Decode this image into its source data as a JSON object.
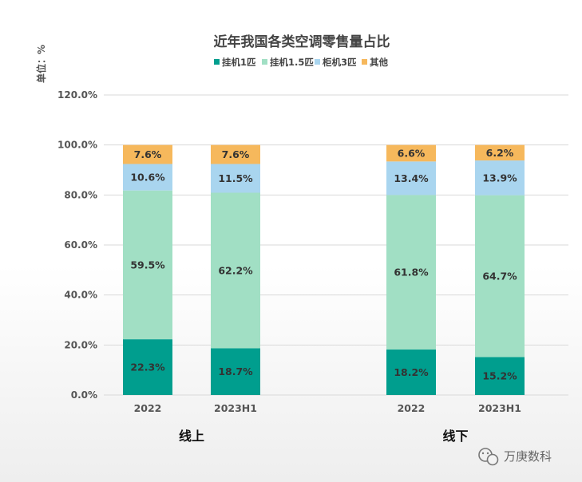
{
  "chart_data": {
    "type": "bar",
    "stacked": true,
    "title": "近年我国各类空调零售量占比",
    "ylabel": "单位：%",
    "ylim": [
      0,
      120
    ],
    "yticks": [
      "0.0%",
      "20.0%",
      "40.0%",
      "60.0%",
      "80.0%",
      "100.0%",
      "120.0%"
    ],
    "categories": [
      "2022",
      "2023H1",
      "2022",
      "2023H1"
    ],
    "groups": [
      {
        "label": "线上",
        "categories": [
          0,
          1
        ]
      },
      {
        "label": "线下",
        "categories": [
          2,
          3
        ]
      }
    ],
    "series": [
      {
        "name": "挂机1匹",
        "color": "#009e8e",
        "values": [
          22.3,
          18.7,
          18.2,
          15.2
        ],
        "labels": [
          "22.3%",
          "18.7%",
          "18.2%",
          "15.2%"
        ]
      },
      {
        "name": "挂机1.5匹",
        "color": "#a1dfc4",
        "values": [
          59.5,
          62.2,
          61.8,
          64.7
        ],
        "labels": [
          "59.5%",
          "62.2%",
          "61.8%",
          "64.7%"
        ]
      },
      {
        "name": "柜机3匹",
        "color": "#a9d5ef",
        "values": [
          10.6,
          11.5,
          13.4,
          13.9
        ],
        "labels": [
          "10.6%",
          "11.5%",
          "13.4%",
          "13.9%"
        ]
      },
      {
        "name": "其他",
        "color": "#f6b85c",
        "values": [
          7.6,
          7.6,
          6.6,
          6.2
        ],
        "labels": [
          "7.6%",
          "7.6%",
          "6.6%",
          "6.2%"
        ]
      }
    ],
    "grid": true,
    "legend": "top"
  },
  "watermark": {
    "text": "万庚数科",
    "icon": "wechat-icon"
  }
}
